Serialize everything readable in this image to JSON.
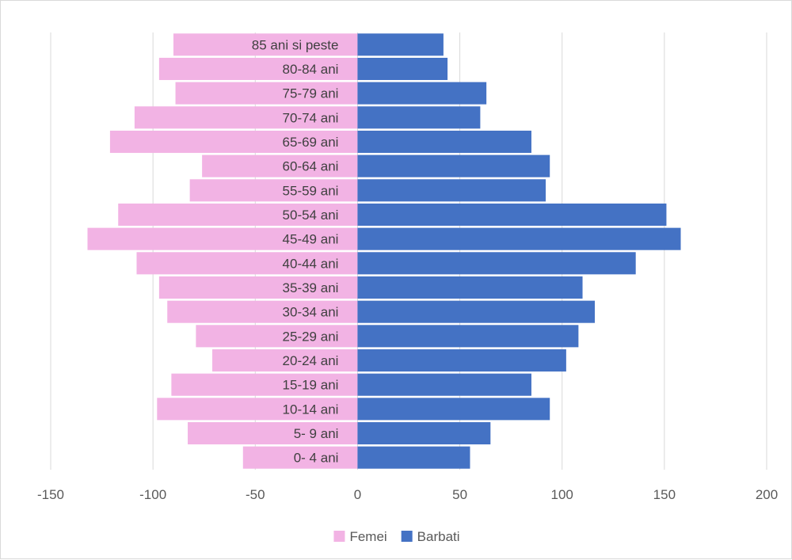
{
  "chart_data": {
    "type": "bar",
    "orientation": "horizontal",
    "stacked": true,
    "categories": [
      "0- 4 ani",
      "5- 9 ani",
      "10-14 ani",
      "15-19 ani",
      "20-24 ani",
      "25-29 ani",
      "30-34 ani",
      "35-39 ani",
      "40-44 ani",
      "45-49 ani",
      "50-54 ani",
      "55-59 ani",
      "60-64 ani",
      "65-69 ani",
      "70-74 ani",
      "75-79 ani",
      "80-84 ani",
      "85 ani si peste"
    ],
    "series": [
      {
        "name": "Femei",
        "color": "#f2b3e4",
        "values": [
          -56,
          -83,
          -98,
          -91,
          -71,
          -79,
          -93,
          -97,
          -108,
          -132,
          -117,
          -82,
          -76,
          -121,
          -109,
          -89,
          -97,
          -90
        ]
      },
      {
        "name": "Barbati",
        "color": "#4472c4",
        "values": [
          55,
          65,
          94,
          85,
          102,
          108,
          116,
          110,
          136,
          158,
          151,
          92,
          94,
          85,
          60,
          63,
          44,
          42
        ]
      }
    ],
    "xlim": [
      -150,
      200
    ],
    "xticks": [
      -150,
      -100,
      -50,
      0,
      50,
      100,
      150,
      200
    ],
    "grid": true,
    "legend": "bottom",
    "title": "",
    "xlabel": "",
    "ylabel": ""
  }
}
